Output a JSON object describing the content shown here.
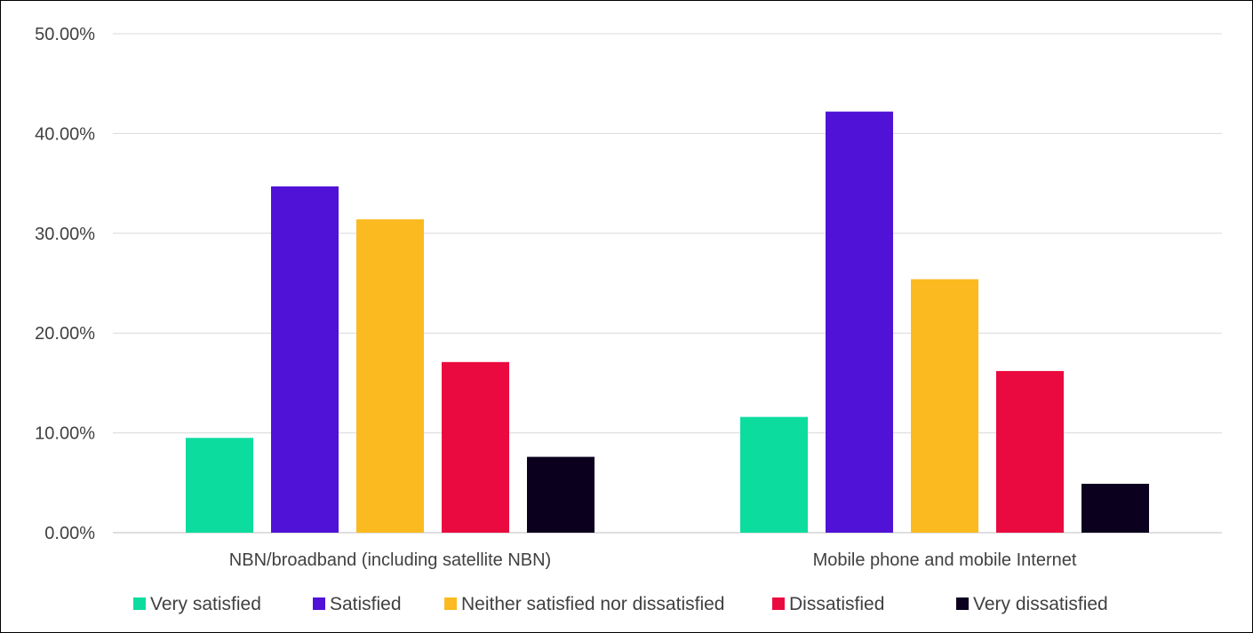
{
  "chart_data": {
    "type": "bar",
    "categories": [
      "NBN/broadband (including satellite NBN)",
      "Mobile phone and mobile Internet"
    ],
    "series": [
      {
        "name": "Very satisfied",
        "color": "#0ddc9f",
        "values": [
          9.5,
          11.6
        ]
      },
      {
        "name": "Satisfied",
        "color": "#5012d6",
        "values": [
          34.7,
          42.2
        ]
      },
      {
        "name": "Neither satisfied nor dissatisfied",
        "color": "#fbba1f",
        "values": [
          31.4,
          25.4
        ]
      },
      {
        "name": "Dissatisfied",
        "color": "#eb0a3f",
        "values": [
          17.1,
          16.2
        ]
      },
      {
        "name": "Very dissatisfied",
        "color": "#0b001e",
        "values": [
          7.6,
          4.9
        ]
      }
    ],
    "ylim": [
      0,
      50
    ],
    "yticks": [
      0,
      10,
      20,
      30,
      40,
      50
    ],
    "ytick_labels": [
      "0.00%",
      "10.00%",
      "20.00%",
      "30.00%",
      "40.00%",
      "50.00%"
    ],
    "grid": true,
    "legend_position": "bottom",
    "title": "",
    "xlabel": "",
    "ylabel": ""
  }
}
